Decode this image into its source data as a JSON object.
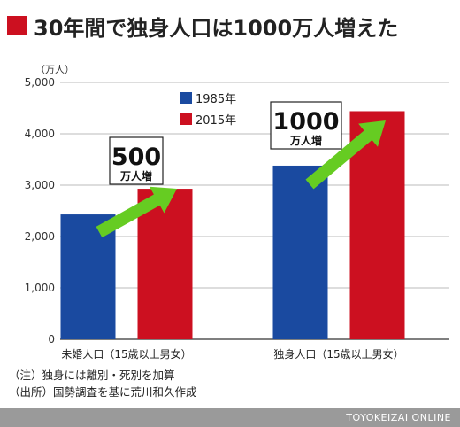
{
  "title": "30年間で独身人口は1000万人増えた",
  "chart_data": {
    "type": "bar",
    "unit_label": "（万人）",
    "categories": [
      "未婚人口（15歳以上男女）",
      "独身人口（15歳以上男女）"
    ],
    "series": [
      {
        "name": "1985年",
        "color": "#1a4aa0",
        "values": [
          2430,
          3380
        ]
      },
      {
        "name": "2015年",
        "color": "#cc1020",
        "values": [
          2930,
          4440
        ]
      }
    ],
    "ylim": [
      0,
      5000
    ],
    "yticks": [
      "0",
      "1,000",
      "2,000",
      "3,000",
      "4,000",
      "5,000"
    ],
    "ytick_values": [
      0,
      1000,
      2000,
      3000,
      4000,
      5000
    ],
    "grid": true,
    "legend": "top-center",
    "annotations": [
      {
        "number": "500",
        "unit": "万人増",
        "category": 0
      },
      {
        "number": "1000",
        "unit": "万人増",
        "category": 1
      }
    ],
    "arrow_color": "#66cc22"
  },
  "notes": [
    "（注）独身には離別・死別を加算",
    "（出所）国勢調査を基に荒川和久作成"
  ],
  "footer": "TOYOKEIZAI ONLINE"
}
